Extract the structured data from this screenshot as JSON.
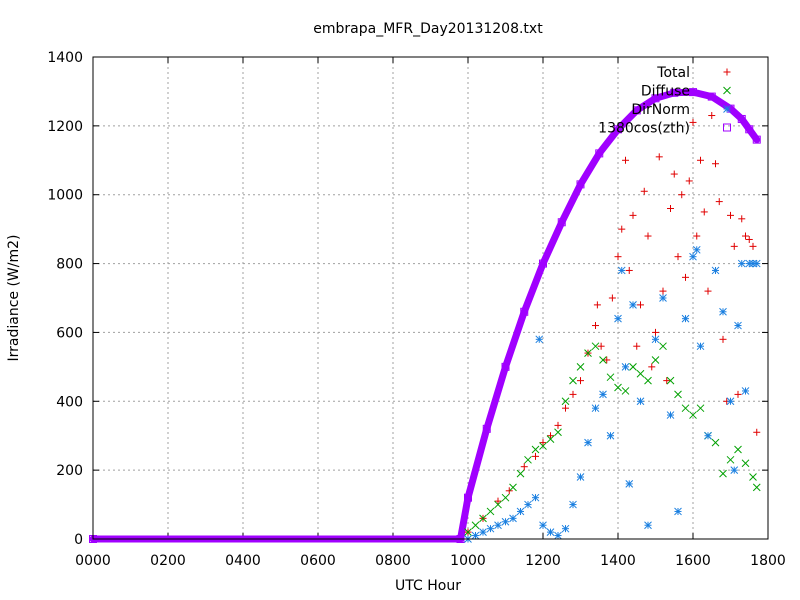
{
  "chart_data": {
    "type": "scatter",
    "title": "embrapa_MFR_Day20131208.txt",
    "xlabel": "UTC Hour",
    "ylabel": "Irradiance (W/m2)",
    "xlim": [
      0,
      1800
    ],
    "ylim": [
      0,
      1400
    ],
    "x_ticks": [
      0,
      200,
      400,
      600,
      800,
      1000,
      1200,
      1400,
      1600,
      1800
    ],
    "x_tick_labels": [
      "0000",
      "0200",
      "0400",
      "0600",
      "0800",
      "1000",
      "1200",
      "1400",
      "1600",
      "1800"
    ],
    "y_ticks": [
      0,
      200,
      400,
      600,
      800,
      1000,
      1200,
      1400
    ],
    "y_tick_labels": [
      "0",
      "200",
      "400",
      "600",
      "800",
      "1000",
      "1200",
      "1400"
    ],
    "grid": true,
    "legend_position": "top-right",
    "series": [
      {
        "name": "Total",
        "color": "#e00000",
        "marker": "plus",
        "x": [
          1000,
          1040,
          1080,
          1110,
          1150,
          1180,
          1200,
          1220,
          1240,
          1260,
          1280,
          1300,
          1320,
          1340,
          1345,
          1355,
          1370,
          1385,
          1400,
          1410,
          1420,
          1430,
          1440,
          1450,
          1460,
          1470,
          1480,
          1490,
          1500,
          1510,
          1520,
          1530,
          1540,
          1550,
          1560,
          1570,
          1580,
          1590,
          1600,
          1610,
          1620,
          1630,
          1640,
          1650,
          1660,
          1670,
          1680,
          1690,
          1700,
          1710,
          1720,
          1730,
          1740,
          1750,
          1760,
          1770
        ],
        "y": [
          20,
          60,
          110,
          140,
          210,
          240,
          280,
          300,
          330,
          380,
          420,
          460,
          540,
          620,
          680,
          560,
          520,
          700,
          820,
          900,
          1100,
          780,
          940,
          560,
          680,
          1010,
          880,
          500,
          600,
          1110,
          720,
          460,
          960,
          1060,
          820,
          1000,
          760,
          1040,
          1210,
          880,
          1100,
          950,
          720,
          1230,
          1090,
          980,
          580,
          400,
          940,
          850,
          420,
          930,
          880,
          870,
          850,
          310
        ]
      },
      {
        "name": "Diffuse",
        "color": "#00a000",
        "marker": "cross",
        "x": [
          1000,
          1020,
          1040,
          1060,
          1080,
          1100,
          1120,
          1140,
          1160,
          1180,
          1200,
          1220,
          1240,
          1260,
          1280,
          1300,
          1320,
          1340,
          1360,
          1380,
          1400,
          1420,
          1440,
          1460,
          1480,
          1500,
          1520,
          1540,
          1560,
          1580,
          1600,
          1620,
          1640,
          1660,
          1680,
          1700,
          1720,
          1740,
          1760,
          1770
        ],
        "y": [
          20,
          40,
          60,
          80,
          100,
          120,
          150,
          190,
          230,
          260,
          270,
          290,
          310,
          400,
          460,
          500,
          540,
          560,
          520,
          470,
          440,
          430,
          500,
          480,
          460,
          520,
          560,
          460,
          420,
          380,
          360,
          380,
          300,
          280,
          190,
          230,
          260,
          220,
          180,
          150
        ]
      },
      {
        "name": "DirNorm",
        "color": "#1a7fe0",
        "marker": "star",
        "x": [
          1000,
          1020,
          1040,
          1060,
          1080,
          1100,
          1120,
          1140,
          1160,
          1180,
          1190,
          1200,
          1220,
          1240,
          1260,
          1280,
          1300,
          1320,
          1340,
          1360,
          1380,
          1400,
          1410,
          1420,
          1430,
          1440,
          1460,
          1480,
          1500,
          1520,
          1540,
          1560,
          1580,
          1600,
          1610,
          1620,
          1640,
          1660,
          1680,
          1700,
          1710,
          1720,
          1730,
          1740,
          1750,
          1760,
          1770
        ],
        "y": [
          0,
          10,
          20,
          30,
          40,
          50,
          60,
          80,
          100,
          120,
          580,
          40,
          20,
          10,
          30,
          100,
          180,
          280,
          380,
          420,
          300,
          640,
          780,
          500,
          160,
          680,
          400,
          40,
          580,
          700,
          360,
          80,
          640,
          820,
          840,
          560,
          300,
          780,
          660,
          400,
          200,
          620,
          800,
          430,
          800,
          800,
          800
        ]
      },
      {
        "name": "1380cos(zth)",
        "color": "#a000ff",
        "marker": "square",
        "curve": true,
        "x": [
          0,
          980,
          1000,
          1050,
          1100,
          1150,
          1200,
          1250,
          1300,
          1350,
          1400,
          1450,
          1500,
          1550,
          1600,
          1650,
          1700,
          1730,
          1750,
          1770
        ],
        "y": [
          0,
          0,
          120,
          320,
          500,
          660,
          800,
          920,
          1030,
          1120,
          1190,
          1245,
          1280,
          1296,
          1298,
          1285,
          1250,
          1220,
          1190,
          1160
        ]
      }
    ]
  }
}
